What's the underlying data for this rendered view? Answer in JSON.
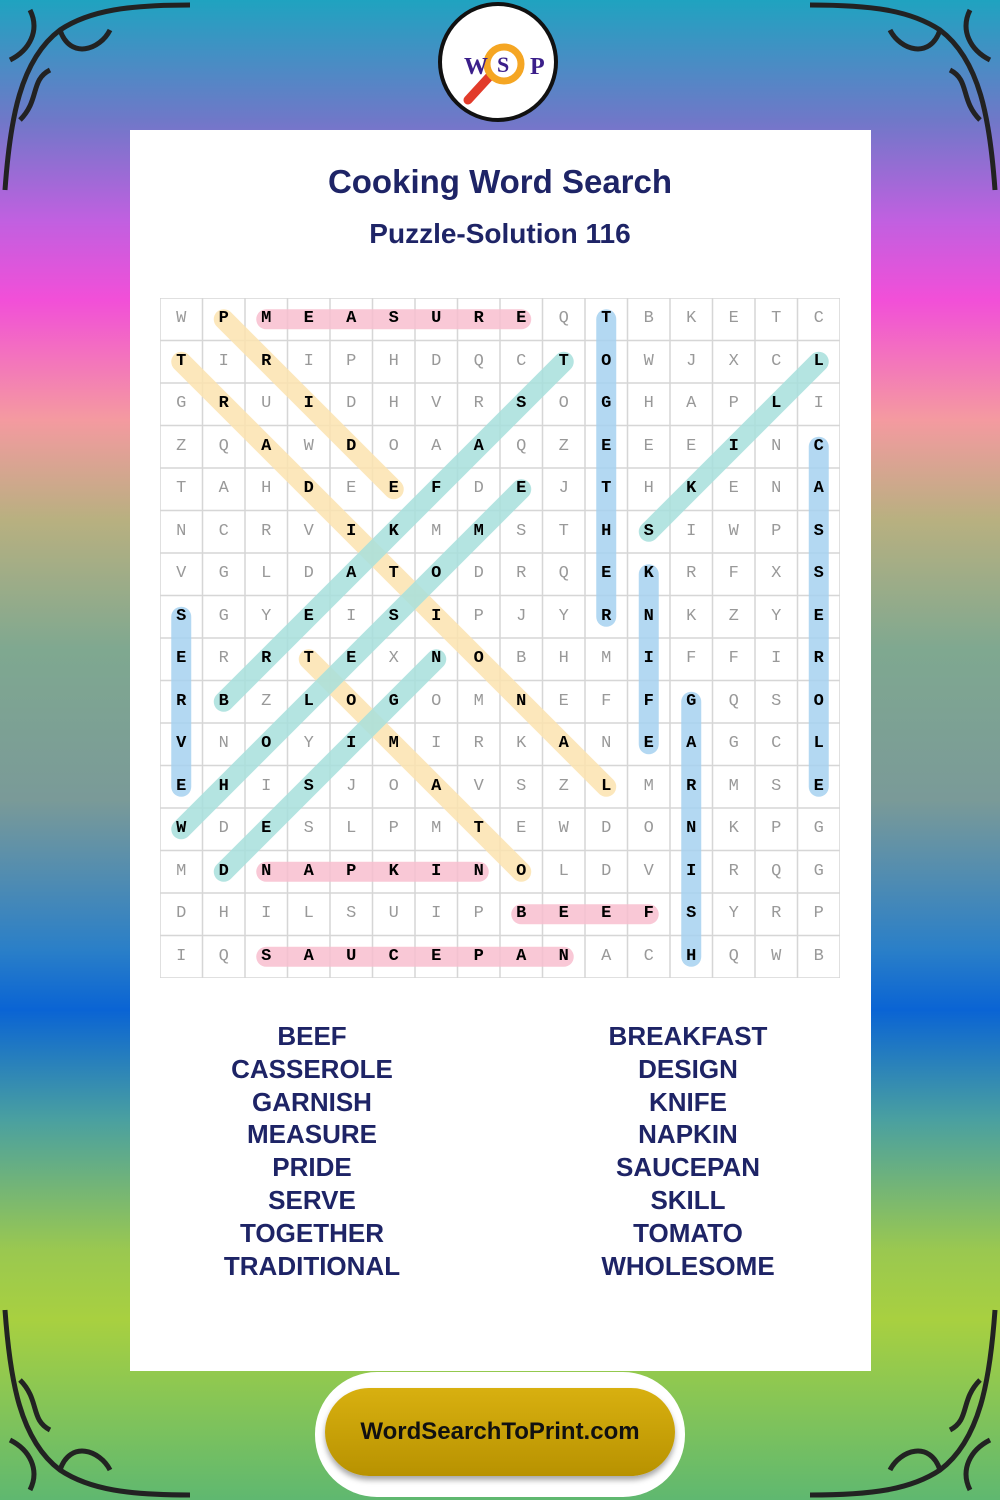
{
  "logo": {
    "letters": [
      "W",
      "S",
      "P"
    ]
  },
  "header": {
    "title": "Cooking Word Search",
    "subtitle": "Puzzle-Solution 116"
  },
  "grid": {
    "rows": [
      "WPMEASUREQTBKETC",
      "TIRIPHDQCTOWJXCL",
      "GRUIDHVRSOGHAPLI",
      "ZQAWDOAAQZEEEINC",
      "TAHDEEFDEJTHKENA",
      "NCRVIKMMSTHSIWPS",
      "VGLDATODRQEKRFXS",
      "SGYEISIPJYRNKZYE",
      "ERRTEXNOBHMIFFIR",
      "RBZLOGOMNEFFGQSO",
      "VNOYIMIRKANEAGCL",
      "EHISJOAVSZLMRMSE",
      "WDESLPMTEWDONKPG",
      "MDNAPKINOLDVIRQG",
      "DHILSUIPBEEFSYRP",
      "IQSAUCEPANACHQWB"
    ],
    "solutions": [
      {
        "word": "MEASURE",
        "start": [
          0,
          2
        ],
        "end": [
          0,
          8
        ],
        "color": "#f8bfd0"
      },
      {
        "word": "NAPKIN",
        "start": [
          13,
          2
        ],
        "end": [
          13,
          7
        ],
        "color": "#f8bfd0"
      },
      {
        "word": "BEEF",
        "start": [
          14,
          8
        ],
        "end": [
          14,
          11
        ],
        "color": "#f8bfd0"
      },
      {
        "word": "SAUCEPAN",
        "start": [
          15,
          2
        ],
        "end": [
          15,
          9
        ],
        "color": "#f8bfd0"
      },
      {
        "word": "TOGETHER",
        "start": [
          0,
          10
        ],
        "end": [
          7,
          10
        ],
        "color": "#a6d2f0"
      },
      {
        "word": "CASSEROLE",
        "start": [
          3,
          15
        ],
        "end": [
          11,
          15
        ],
        "color": "#a6d2f0"
      },
      {
        "word": "SERVE",
        "start": [
          7,
          0
        ],
        "end": [
          11,
          0
        ],
        "color": "#a6d2f0"
      },
      {
        "word": "KNIFE",
        "start": [
          6,
          11
        ],
        "end": [
          10,
          11
        ],
        "color": "#a6d2f0"
      },
      {
        "word": "GARNISH",
        "start": [
          9,
          12
        ],
        "end": [
          15,
          12
        ],
        "color": "#a6d2f0"
      },
      {
        "word": "PRIDE",
        "start": [
          0,
          1
        ],
        "end": [
          4,
          5
        ],
        "color": "#fce3b0"
      },
      {
        "word": "TRADITIONAL",
        "start": [
          1,
          0
        ],
        "end": [
          11,
          10
        ],
        "color": "#fce3b0"
      },
      {
        "word": "TOMATO",
        "start": [
          8,
          3
        ],
        "end": [
          13,
          8
        ],
        "color": "#fce3b0"
      },
      {
        "word": "BREAKFAST",
        "start": [
          9,
          1
        ],
        "end": [
          1,
          9
        ],
        "color": "#a8e0dc"
      },
      {
        "word": "WHOLESOME",
        "start": [
          12,
          0
        ],
        "end": [
          4,
          8
        ],
        "color": "#a8e0dc"
      },
      {
        "word": "DESIGN",
        "start": [
          13,
          1
        ],
        "end": [
          8,
          6
        ],
        "color": "#a8e0dc"
      },
      {
        "word": "SKILL",
        "start": [
          5,
          11
        ],
        "end": [
          1,
          15
        ],
        "color": "#a8e0dc"
      }
    ]
  },
  "word_list": {
    "left": [
      "BEEF",
      "CASSEROLE",
      "GARNISH",
      "MEASURE",
      "PRIDE",
      "SERVE",
      "TOGETHER",
      "TRADITIONAL"
    ],
    "right": [
      "BREAKFAST",
      "DESIGN",
      "KNIFE",
      "NAPKIN",
      "SAUCEPAN",
      "SKILL",
      "TOMATO",
      "WHOLESOME"
    ]
  },
  "footer": {
    "site": "WordSearchToPrint.com"
  }
}
